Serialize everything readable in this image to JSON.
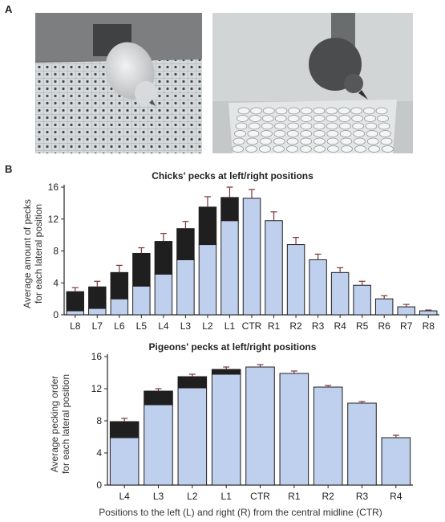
{
  "panel_labels": {
    "a": "A",
    "b": "B"
  },
  "photos": {
    "left": {
      "subject": "chick",
      "colors": {
        "background": "#6f7172",
        "grid_paper": "#dcdfe0"
      }
    },
    "right": {
      "subject": "pigeon",
      "colors": {
        "background": "#bfc3c4",
        "tray": "#dfe2e3"
      }
    }
  },
  "colors": {
    "bar_fill": "#bfcfee",
    "bar_top": "#1f1f1f",
    "bar_stroke": "#1f1f1f",
    "error": "#7b3535",
    "axis": "#222222"
  },
  "chart_data": [
    {
      "type": "bar",
      "stacked": true,
      "title": "Chicks' pecks at left/right positions",
      "ylabel": [
        "Average amount of pecks",
        "for each lateral position"
      ],
      "xlabel": "",
      "ylim": [
        0,
        16
      ],
      "yticks": [
        0,
        4,
        8,
        12,
        16
      ],
      "categories": [
        "L8",
        "L7",
        "L6",
        "L5",
        "L4",
        "L3",
        "L2",
        "L1",
        "CTR",
        "R1",
        "R2",
        "R3",
        "R4",
        "R5",
        "R6",
        "R7",
        "R8"
      ],
      "series": [
        {
          "values": [
            0.5,
            0.8,
            2.0,
            3.6,
            5.1,
            6.9,
            8.8,
            11.8,
            14.6,
            11.8,
            8.8,
            6.9,
            5.3,
            3.7,
            2.0,
            1.0,
            0.5
          ]
        },
        {
          "values": [
            2.4,
            2.7,
            3.3,
            4.1,
            4.1,
            3.9,
            4.7,
            2.9,
            0,
            0,
            0,
            0,
            0,
            0,
            0,
            0,
            0
          ]
        }
      ],
      "totals": [
        2.9,
        3.5,
        5.3,
        7.7,
        9.2,
        10.8,
        13.5,
        14.7,
        14.6,
        11.8,
        8.8,
        6.9,
        5.3,
        3.7,
        2.0,
        1.0,
        0.5
      ],
      "errors": [
        0.5,
        0.7,
        0.9,
        0.7,
        1.0,
        0.9,
        1.3,
        1.3,
        1.1,
        1.1,
        0.9,
        0.7,
        0.6,
        0.5,
        0.4,
        0.3,
        0.1
      ]
    },
    {
      "type": "bar",
      "stacked": true,
      "title": "Pigeons' pecks at left/right positions",
      "ylabel": [
        "Average pecking order",
        "for each lateral position"
      ],
      "xlabel": "Positions to the left (L) and right (R) from the central midline (CTR)",
      "ylim": [
        0,
        16
      ],
      "yticks": [
        0,
        4,
        8,
        12,
        16
      ],
      "categories": [
        "L4",
        "L3",
        "L2",
        "L1",
        "CTR",
        "R1",
        "R2",
        "R3",
        "R4"
      ],
      "series": [
        {
          "values": [
            5.9,
            10.0,
            12.1,
            13.8,
            14.7,
            13.9,
            12.2,
            10.2,
            5.9
          ]
        },
        {
          "values": [
            2.0,
            1.7,
            1.4,
            0.6,
            0,
            0,
            0,
            0,
            0
          ]
        }
      ],
      "totals": [
        7.9,
        11.7,
        13.5,
        14.4,
        14.7,
        13.9,
        12.2,
        10.2,
        5.9
      ],
      "errors": [
        0.4,
        0.3,
        0.3,
        0.3,
        0.3,
        0.3,
        0.2,
        0.2,
        0.3
      ]
    }
  ]
}
